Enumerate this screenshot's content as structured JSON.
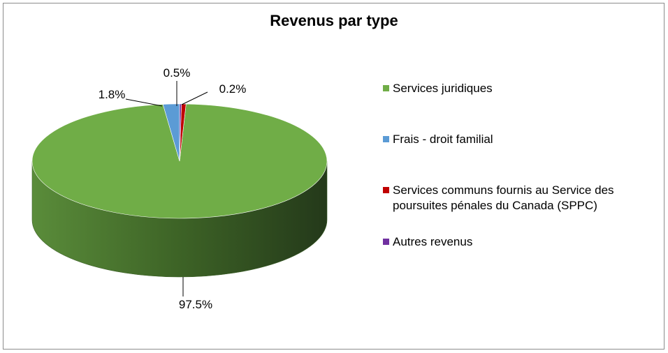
{
  "chart_data": {
    "type": "pie",
    "title": "Revenus par type",
    "categories": [
      "Services juridiques",
      "Frais - droit familial",
      "Services communs fournis au Service des poursuites pénales du Canada (SPPC)",
      "Autres revenus"
    ],
    "values": [
      97.5,
      1.8,
      0.5,
      0.2
    ],
    "data_labels": [
      "97.5%",
      "1.8%",
      "0.5%",
      "0.2%"
    ],
    "colors": [
      "#70AD47",
      "#5B9BD5",
      "#C00000",
      "#7030A0"
    ],
    "legend_position": "right",
    "style": "3d"
  }
}
